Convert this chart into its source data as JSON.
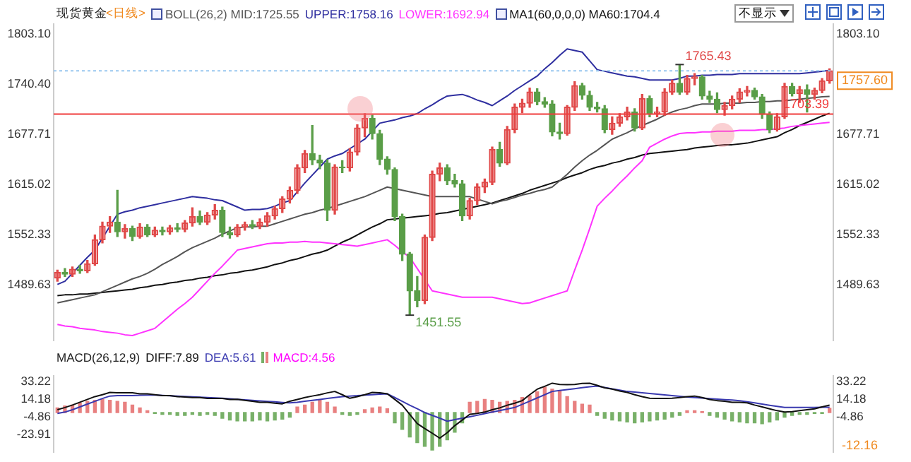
{
  "chart_data": [
    {
      "type": "candlestick",
      "title": "现货黄金",
      "subtitle": "<日线>",
      "legend": "top",
      "categories": [
        null,
        null,
        null,
        null,
        null,
        null,
        null,
        null,
        null,
        null,
        null,
        null,
        null,
        null,
        null,
        null,
        null,
        null,
        null,
        null,
        null,
        null,
        null,
        null,
        null,
        null,
        null,
        null,
        null,
        null,
        null,
        null,
        null,
        null,
        null,
        null,
        null,
        null,
        null,
        null,
        null,
        null,
        null,
        null,
        null,
        null,
        null,
        null,
        null,
        null,
        null,
        null,
        null,
        null,
        null,
        null,
        null,
        null,
        null,
        null,
        null,
        null,
        null,
        null,
        null,
        null,
        null,
        null,
        null,
        null,
        null,
        null,
        null,
        null,
        null,
        null,
        null,
        null,
        null,
        null,
        null,
        null,
        null,
        null,
        null,
        null,
        null,
        null,
        null,
        null,
        null,
        null,
        null,
        null,
        null,
        null,
        null,
        null,
        null,
        null,
        null,
        null,
        null,
        null
      ],
      "ohlc": [
        [
          1498,
          1508,
          1494,
          1505
        ],
        [
          1505,
          1510,
          1500,
          1503
        ],
        [
          1503,
          1512,
          1500,
          1509
        ],
        [
          1509,
          1514,
          1504,
          1507
        ],
        [
          1507,
          1520,
          1505,
          1516
        ],
        [
          1516,
          1552,
          1514,
          1546
        ],
        [
          1546,
          1568,
          1542,
          1563
        ],
        [
          1563,
          1575,
          1555,
          1568
        ],
        [
          1568,
          1608,
          1550,
          1556
        ],
        [
          1556,
          1565,
          1548,
          1560
        ],
        [
          1560,
          1563,
          1545,
          1550
        ],
        [
          1550,
          1566,
          1548,
          1562
        ],
        [
          1562,
          1565,
          1550,
          1552
        ],
        [
          1552,
          1562,
          1550,
          1558
        ],
        [
          1558,
          1562,
          1552,
          1556
        ],
        [
          1556,
          1564,
          1553,
          1561
        ],
        [
          1561,
          1566,
          1556,
          1559
        ],
        [
          1559,
          1570,
          1556,
          1567
        ],
        [
          1567,
          1586,
          1563,
          1575
        ],
        [
          1575,
          1582,
          1565,
          1568
        ],
        [
          1568,
          1580,
          1565,
          1577
        ],
        [
          1577,
          1590,
          1572,
          1583
        ],
        [
          1583,
          1587,
          1550,
          1555
        ],
        [
          1555,
          1562,
          1548,
          1552
        ],
        [
          1552,
          1565,
          1550,
          1562
        ],
        [
          1562,
          1568,
          1558,
          1565
        ],
        [
          1565,
          1570,
          1560,
          1563
        ],
        [
          1563,
          1572,
          1560,
          1568
        ],
        [
          1568,
          1580,
          1563,
          1576
        ],
        [
          1576,
          1588,
          1572,
          1585
        ],
        [
          1585,
          1600,
          1580,
          1597
        ],
        [
          1597,
          1612,
          1592,
          1608
        ],
        [
          1608,
          1640,
          1604,
          1636
        ],
        [
          1636,
          1658,
          1630,
          1654
        ],
        [
          1654,
          1689,
          1640,
          1646
        ],
        [
          1646,
          1652,
          1635,
          1642
        ],
        [
          1642,
          1646,
          1570,
          1583
        ],
        [
          1583,
          1640,
          1578,
          1637
        ],
        [
          1637,
          1645,
          1630,
          1636
        ],
        [
          1636,
          1660,
          1632,
          1656
        ],
        [
          1656,
          1690,
          1652,
          1686
        ],
        [
          1686,
          1704,
          1675,
          1698
        ],
        [
          1698,
          1702,
          1672,
          1679
        ],
        [
          1679,
          1683,
          1640,
          1647
        ],
        [
          1647,
          1650,
          1628,
          1634
        ],
        [
          1634,
          1636,
          1570,
          1575
        ],
        [
          1575,
          1578,
          1520,
          1528
        ],
        [
          1528,
          1530,
          1451.55,
          1482
        ],
        [
          1482,
          1500,
          1462,
          1470
        ],
        [
          1470,
          1552,
          1466,
          1549
        ],
        [
          1549,
          1632,
          1545,
          1628
        ],
        [
          1628,
          1642,
          1620,
          1636
        ],
        [
          1636,
          1640,
          1615,
          1620
        ],
        [
          1620,
          1628,
          1612,
          1616
        ],
        [
          1616,
          1620,
          1570,
          1576
        ],
        [
          1576,
          1598,
          1572,
          1595
        ],
        [
          1595,
          1616,
          1590,
          1612
        ],
        [
          1612,
          1622,
          1605,
          1618
        ],
        [
          1618,
          1662,
          1615,
          1659
        ],
        [
          1659,
          1668,
          1638,
          1642
        ],
        [
          1642,
          1688,
          1640,
          1684
        ],
        [
          1684,
          1716,
          1680,
          1712
        ],
        [
          1712,
          1722,
          1705,
          1717
        ],
        [
          1717,
          1736,
          1712,
          1731
        ],
        [
          1731,
          1735,
          1715,
          1719
        ],
        [
          1719,
          1724,
          1712,
          1716
        ],
        [
          1716,
          1720,
          1676,
          1681
        ],
        [
          1681,
          1692,
          1672,
          1679
        ],
        [
          1679,
          1714,
          1677,
          1712
        ],
        [
          1712,
          1744,
          1708,
          1739
        ],
        [
          1739,
          1742,
          1722,
          1727
        ],
        [
          1727,
          1732,
          1708,
          1712
        ],
        [
          1712,
          1718,
          1706,
          1710
        ],
        [
          1710,
          1714,
          1680,
          1684
        ],
        [
          1684,
          1700,
          1678,
          1692
        ],
        [
          1692,
          1704,
          1688,
          1700
        ],
        [
          1700,
          1712,
          1696,
          1706
        ],
        [
          1706,
          1710,
          1682,
          1686
        ],
        [
          1686,
          1728,
          1684,
          1723
        ],
        [
          1723,
          1726,
          1700,
          1704
        ],
        [
          1704,
          1712,
          1700,
          1706
        ],
        [
          1706,
          1735,
          1702,
          1731
        ],
        [
          1731,
          1746,
          1728,
          1742
        ],
        [
          1742,
          1765.43,
          1728,
          1731
        ],
        [
          1731,
          1752,
          1728,
          1748
        ],
        [
          1748,
          1754,
          1740,
          1750
        ],
        [
          1750,
          1752,
          1722,
          1726
        ],
        [
          1726,
          1732,
          1718,
          1722
        ],
        [
          1722,
          1730,
          1705,
          1709
        ],
        [
          1709,
          1718,
          1702,
          1714
        ],
        [
          1714,
          1726,
          1710,
          1722
        ],
        [
          1722,
          1735,
          1718,
          1731
        ],
        [
          1731,
          1738,
          1726,
          1733
        ],
        [
          1733,
          1736,
          1722,
          1725
        ],
        [
          1725,
          1728,
          1698,
          1703
        ],
        [
          1703,
          1706,
          1680,
          1684
        ],
        [
          1684,
          1704,
          1682,
          1700
        ],
        [
          1700,
          1742,
          1698,
          1738
        ],
        [
          1738,
          1742,
          1726,
          1729
        ],
        [
          1729,
          1738,
          1718,
          1734
        ],
        [
          1734,
          1740,
          1706,
          1728
        ],
        [
          1728,
          1736,
          1722,
          1733
        ],
        [
          1733,
          1748,
          1730,
          1745
        ],
        [
          1745,
          1760,
          1742,
          1757.6
        ]
      ],
      "series": [
        {
          "name": "BOLL(26,2) MID:1725.55",
          "type": "line",
          "color": "#555555",
          "values": [
            1467,
            1469,
            1471,
            1473,
            1475,
            1477,
            1481,
            1485,
            1489,
            1493,
            1497,
            1500,
            1504,
            1509,
            1515,
            1520,
            1525,
            1531,
            1536,
            1540,
            1544,
            1548,
            1553,
            1557,
            1561,
            1562,
            1562,
            1563,
            1563,
            1566,
            1569,
            1572,
            1575,
            1578,
            1580,
            1583,
            1585,
            1588,
            1591,
            1594,
            1597,
            1600,
            1604,
            1608,
            1612,
            1610,
            1608,
            1606,
            1604,
            1602,
            1600,
            1600,
            1600,
            1600,
            1600,
            1600,
            1597,
            1594,
            1591,
            1594,
            1596,
            1599,
            1602,
            1604,
            1607,
            1609,
            1612,
            1620,
            1628,
            1637,
            1645,
            1652,
            1658,
            1665,
            1672,
            1676,
            1680,
            1685,
            1689,
            1693,
            1697,
            1702,
            1706,
            1709,
            1711,
            1714,
            1716,
            1716,
            1716,
            1717,
            1717,
            1717,
            1718,
            1718,
            1719,
            1719,
            1720,
            1720,
            1721,
            1722,
            1723,
            1724,
            1725,
            1725.55
          ]
        },
        {
          "name": "UPPER:1758.16",
          "type": "line",
          "color": "#2f2fa0",
          "values": [
            1490,
            1494,
            1504,
            1514,
            1524,
            1533,
            1548,
            1563,
            1578,
            1581,
            1583,
            1586,
            1588,
            1590,
            1592,
            1594,
            1596,
            1598,
            1600,
            1599,
            1598,
            1596,
            1595,
            1591,
            1587,
            1583,
            1584,
            1584,
            1585,
            1588,
            1592,
            1595,
            1606,
            1617,
            1627,
            1637,
            1647,
            1651,
            1654,
            1660,
            1666,
            1672,
            1682,
            1692,
            1694,
            1696,
            1699,
            1701,
            1704,
            1710,
            1715,
            1721,
            1726,
            1727,
            1728,
            1725,
            1721,
            1718,
            1714,
            1720,
            1726,
            1733,
            1739,
            1745,
            1751,
            1760,
            1768,
            1777,
            1785,
            1783,
            1781,
            1770,
            1759,
            1757,
            1755,
            1753,
            1751,
            1750,
            1748,
            1746,
            1746,
            1746,
            1746,
            1748,
            1751,
            1751,
            1752,
            1752,
            1753,
            1753,
            1753,
            1754,
            1754,
            1754,
            1754,
            1754,
            1754,
            1754,
            1754,
            1754,
            1755,
            1756,
            1757,
            1758.16
          ]
        },
        {
          "name": "LOWER:1692.94",
          "type": "line",
          "color": "#ff33ff",
          "values": [
            1440,
            1438,
            1437,
            1435,
            1434,
            1433,
            1431,
            1430,
            1429,
            1427,
            1426,
            1429,
            1432,
            1435,
            1443,
            1451,
            1459,
            1466,
            1474,
            1484,
            1494,
            1504,
            1513,
            1523,
            1533,
            1535,
            1537,
            1539,
            1541,
            1542,
            1542,
            1543,
            1543,
            1544,
            1543,
            1543,
            1542,
            1541,
            1540,
            1539,
            1538,
            1540,
            1542,
            1544,
            1546,
            1539,
            1531,
            1524,
            1510,
            1496,
            1482,
            1480,
            1478,
            1476,
            1474,
            1474,
            1474,
            1474,
            1474,
            1472,
            1470,
            1468,
            1466,
            1467,
            1470,
            1473,
            1476,
            1479,
            1482,
            1508,
            1533,
            1560,
            1588,
            1598,
            1607,
            1617,
            1626,
            1636,
            1645,
            1662,
            1667,
            1672,
            1676,
            1679,
            1680,
            1680,
            1681,
            1681,
            1682,
            1682,
            1682,
            1683,
            1683,
            1683,
            1684,
            1684,
            1685,
            1686,
            1688,
            1689,
            1690,
            1691,
            1692,
            1692.94
          ]
        },
        {
          "name": "MA1(60,0,0,0) MA60:1704.4",
          "type": "line",
          "color": "#111111",
          "values": [
            1476,
            1477,
            1477,
            1478,
            1478,
            1479,
            1480,
            1481,
            1482,
            1483,
            1484,
            1486,
            1487,
            1489,
            1490,
            1492,
            1493,
            1495,
            1496,
            1498,
            1499,
            1501,
            1502,
            1504,
            1505,
            1507,
            1508,
            1510,
            1512,
            1515,
            1517,
            1520,
            1522,
            1525,
            1528,
            1530,
            1533,
            1538,
            1543,
            1547,
            1552,
            1557,
            1562,
            1566,
            1571,
            1572,
            1573,
            1574,
            1575,
            1576,
            1577,
            1579,
            1580,
            1582,
            1584,
            1586,
            1588,
            1590,
            1592,
            1595,
            1598,
            1601,
            1604,
            1608,
            1611,
            1614,
            1617,
            1620,
            1624,
            1627,
            1630,
            1634,
            1637,
            1639,
            1642,
            1644,
            1647,
            1649,
            1652,
            1654,
            1655,
            1656,
            1657,
            1658,
            1659,
            1661,
            1662,
            1663,
            1664,
            1665,
            1665,
            1666,
            1667,
            1669,
            1671,
            1673,
            1675,
            1680,
            1684,
            1689,
            1693,
            1697,
            1701,
            1704.4
          ]
        }
      ],
      "marker": "none",
      "ylim": [
        1420,
        1816
      ],
      "yticks": [
        {
          "value": 1803.1,
          "label": "1803.10"
        },
        {
          "value": 1740.4,
          "label": "1740.40"
        },
        1677.71,
        1615.02,
        1552.33,
        1489.63
      ],
      "y2lim": [
        1420,
        1816
      ],
      "y2ticks": [
        {
          "value": 1803.1,
          "label": "1803.10"
        },
        1677.71,
        1615.02,
        1552.33,
        1489.63
      ],
      "ref_lines": [
        {
          "axis": "y",
          "value": 1757.6,
          "label": "1757.60",
          "color": "#99c8f0",
          "line_style": "dotted"
        },
        {
          "axis": "y",
          "value": 1703.39,
          "label": "1703.39",
          "color": "#f03c3c",
          "line_style": "solid"
        }
      ],
      "annotations": [
        "不显示",
        "1765.43",
        "1451.55"
      ]
    },
    {
      "type": "bar",
      "title": "MACD(26,12,9)",
      "legend": "top left",
      "categories": [
        null,
        null,
        null,
        null,
        null,
        null,
        null,
        null,
        null,
        null,
        null,
        null,
        null,
        null,
        null,
        null,
        null,
        null,
        null,
        null,
        null,
        null,
        null,
        null,
        null,
        null,
        null,
        null,
        null,
        null,
        null,
        null,
        null,
        null,
        null,
        null,
        null,
        null,
        null,
        null,
        null,
        null,
        null,
        null,
        null,
        null,
        null,
        null,
        null,
        null,
        null,
        null,
        null,
        null,
        null,
        null,
        null,
        null,
        null,
        null,
        null,
        null,
        null,
        null,
        null,
        null,
        null,
        null,
        null,
        null,
        null,
        null,
        null,
        null,
        null,
        null,
        null,
        null,
        null,
        null,
        null,
        null,
        null,
        null,
        null,
        null,
        null,
        null,
        null,
        null,
        null,
        null,
        null,
        null,
        null,
        null,
        null,
        null,
        null,
        null,
        null,
        null,
        null,
        null
      ],
      "series": [
        {
          "name": "DIFF:7.89",
          "type": "line",
          "color": "#111111",
          "values": [
            3,
            5.4,
            8,
            11,
            14,
            17,
            19,
            21.5,
            21,
            21,
            21,
            20,
            20,
            19,
            18,
            18,
            17,
            16.6,
            16,
            16,
            15,
            15,
            15,
            14,
            14.2,
            13,
            12,
            11,
            11,
            10,
            9.3,
            12,
            14,
            16,
            17.6,
            19,
            21,
            22.5,
            19,
            15.2,
            17,
            19,
            21.5,
            21,
            20,
            14,
            7.8,
            -2,
            -11.7,
            -17,
            -22,
            -27.3,
            -21.4,
            -14,
            -8,
            -1.9,
            -1,
            0.5,
            3,
            5,
            7.8,
            10,
            12.7,
            19,
            24.9,
            28,
            31.3,
            30,
            29.8,
            30,
            31,
            31.3,
            29,
            26.4,
            25,
            23,
            21.5,
            19,
            17,
            15.2,
            15,
            15,
            15.2,
            16,
            17,
            17.6,
            16,
            14,
            12.7,
            12,
            11,
            11,
            10.3,
            8,
            6,
            4,
            2,
            0.5,
            1,
            2,
            3,
            3.9,
            6,
            7.89
          ]
        },
        {
          "name": "DEA:5.61",
          "type": "line",
          "color": "#3a3ab0",
          "values": [
            -1,
            0.5,
            3,
            6,
            9,
            12,
            15,
            17.6,
            18,
            18,
            18,
            18.5,
            18.6,
            18.6,
            18.2,
            17.9,
            17.5,
            17.1,
            16.8,
            16.4,
            16,
            15.6,
            15.2,
            14.6,
            14.1,
            13.5,
            13,
            12.4,
            11.9,
            11.4,
            10.8,
            10.3,
            11,
            12,
            13,
            14,
            15,
            16,
            17,
            17.6,
            18,
            18.6,
            19,
            19.5,
            20,
            16,
            12,
            7.8,
            4,
            0,
            -3,
            -6,
            -9.2,
            -7.6,
            -6,
            -4.5,
            -2.9,
            -1.2,
            0.5,
            2,
            3.7,
            5.4,
            8.8,
            12.2,
            15.6,
            19,
            22.5,
            23.5,
            24.5,
            25.5,
            26.5,
            27.5,
            28.3,
            26.8,
            25.3,
            24,
            22.5,
            21.8,
            21,
            20.3,
            19.6,
            18.8,
            18,
            17.3,
            16.6,
            16,
            15.5,
            14.9,
            14.4,
            13.8,
            13.3,
            12.7,
            11.5,
            10.3,
            9,
            7.8,
            6.6,
            5.4,
            5.4,
            5.4,
            5.5,
            5.5,
            5.6,
            5.61
          ]
        },
        {
          "name": "MACD:4.56",
          "values": [
            5,
            7,
            8,
            10,
            12,
            13,
            14,
            13,
            12,
            11,
            8,
            5,
            2,
            -1,
            -2,
            -2,
            -3,
            -3,
            -2,
            -3,
            -2,
            -3,
            -6,
            -8,
            -9,
            -9,
            -9,
            -8,
            -9,
            -8,
            -7,
            -5,
            6,
            8,
            11,
            13,
            11,
            6,
            -2,
            -3,
            -2,
            3,
            5,
            6,
            4,
            -11,
            -18,
            -26,
            -32,
            -36,
            -40,
            -36,
            -29,
            -21,
            -11,
            11,
            12,
            14,
            13,
            11,
            12,
            13,
            16,
            18,
            22,
            27,
            25,
            23,
            17,
            12,
            9,
            8,
            -3,
            -6,
            -8,
            -9,
            -10,
            -11,
            -10,
            -9,
            -8,
            -7,
            -5,
            -3,
            2,
            2,
            1,
            -3,
            -5,
            -7,
            -9,
            -10,
            -11,
            -11,
            -12,
            -10,
            -8,
            -5,
            -3,
            -2,
            -2,
            -1,
            -1,
            4.56
          ],
          "colors": [
            "#e88080",
            "#e88080",
            "#e88080",
            "#e88080",
            "#e88080",
            "#e88080",
            "#e88080",
            "#e88080",
            "#e88080",
            "#e88080",
            "#e88080",
            "#e88080",
            "#e88080",
            "#78b068",
            "#78b068",
            "#78b068",
            "#78b068",
            "#78b068",
            "#78b068",
            "#78b068",
            "#78b068",
            "#78b068",
            "#78b068",
            "#78b068",
            "#78b068",
            "#78b068",
            "#78b068",
            "#78b068",
            "#78b068",
            "#78b068",
            "#78b068",
            "#78b068",
            "#e88080",
            "#e88080",
            "#e88080",
            "#e88080",
            "#e88080",
            "#e88080",
            "#78b068",
            "#78b068",
            "#78b068",
            "#e88080",
            "#e88080",
            "#e88080",
            "#e88080",
            "#78b068",
            "#78b068",
            "#78b068",
            "#78b068",
            "#78b068",
            "#78b068",
            "#78b068",
            "#78b068",
            "#78b068",
            "#78b068",
            "#e88080",
            "#e88080",
            "#e88080",
            "#e88080",
            "#e88080",
            "#e88080",
            "#e88080",
            "#e88080",
            "#e88080",
            "#e88080",
            "#e88080",
            "#e88080",
            "#e88080",
            "#e88080",
            "#e88080",
            "#e88080",
            "#e88080",
            "#78b068",
            "#78b068",
            "#78b068",
            "#78b068",
            "#78b068",
            "#78b068",
            "#78b068",
            "#78b068",
            "#78b068",
            "#78b068",
            "#78b068",
            "#78b068",
            "#e88080",
            "#e88080",
            "#e88080",
            "#78b068",
            "#78b068",
            "#78b068",
            "#78b068",
            "#78b068",
            "#78b068",
            "#78b068",
            "#78b068",
            "#78b068",
            "#78b068",
            "#78b068",
            "#78b068",
            "#78b068",
            "#78b068",
            "#78b068",
            "#78b068",
            "#e88080"
          ]
        }
      ],
      "marker": "none",
      "ylim": [
        -42,
        39
      ],
      "yticks": [
        33.22,
        14.18,
        -4.86,
        -23.91
      ],
      "y2lim": [
        -42,
        39
      ],
      "y2ticks": [
        33.22,
        14.18,
        -4.86
      ],
      "annotations": [
        "-12.16"
      ]
    }
  ]
}
